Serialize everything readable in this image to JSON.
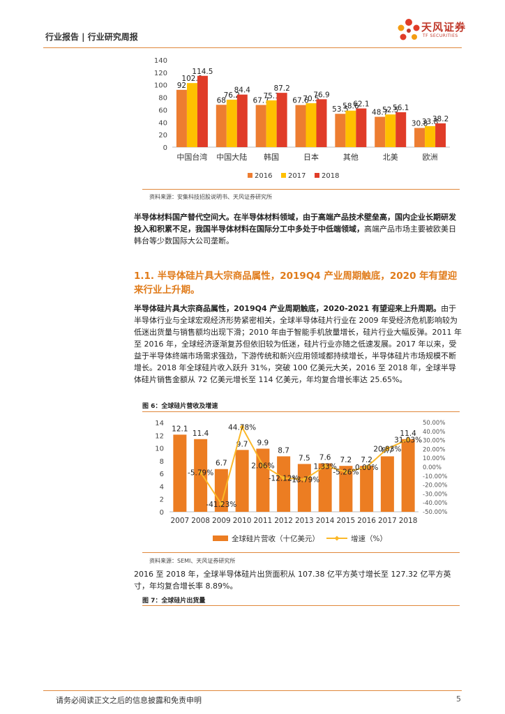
{
  "header": {
    "left_text": "行业报告 | 行业研究周报",
    "logo_text": "天风证券",
    "logo_sub": "TF SECURITIES"
  },
  "top_chart_source": "资料来源：安集科技招股说明书、天风证券研究所",
  "para1_bold": "半导体材料国产替代空间大。在半导体材料领域，由于高端产品技术壁垒高，国内企业长期研发投入和积累不足，我国半导体材料在国际分工中多处于中低端领域，",
  "para1_rest": "高端产品市场主要被欧美日韩台等少数国际大公司垄断。",
  "section_title": "1.1. 半导体硅片具大宗商品属性，2019Q4 产业周期触底，2020 年有望迎来行业上升期。",
  "para2_bold": "半导体硅片具大宗商品属性，2019Q4 产业周期触底，2020-2021 有望迎来上升周期。",
  "para2_rest": "由于半导体行业与全球宏观经济形势紧密相关，全球半导体硅片行业在 2009 年受经济危机影响较为低迷出货量与销售额均出现下滑；2010 年由于智能手机放量增长，硅片行业大幅反弹。2011 年至 2016 年，全球经济逐渐复苏但依旧较为低迷，硅片行业亦随之低速发展。2017 年以来，受益于半导体终端市场需求强劲，下游传统和新兴应用领域都持续增长，半导体硅片市场规模不断增长。2018 年全球硅片收入跃升 31%，突破 100 亿美元大关，2016 至 2018 年，全球半导体硅片销售金额从 72 亿美元增长至 114 亿美元，年均复合增长率达 25.65%。",
  "fig6_title": "图 6：全球硅片营收及增速",
  "fig6_source": "资料来源：SEMI、天风证券研究所",
  "para3": "2016 至 2018 年，全球半导体硅片出货面积从 107.38 亿平方英寸增长至 127.32 亿平方英寸，年均复合增长率 8.89%。",
  "fig7_title": "图 7：全球硅片出货量",
  "footer": {
    "disclaimer": "请务必阅读正文之后的信息披露和免责申明",
    "page": "5"
  },
  "colors": {
    "accent": "#e07b1a",
    "bar_orange": "#ec7d22",
    "line_yellow": "#fbb829",
    "c2016": "#ed7d31",
    "c2017": "#ffc000",
    "c2018": "#e03c28"
  },
  "chart_data": [
    {
      "type": "bar",
      "categories": [
        "中国台湾",
        "中国大陆",
        "韩国",
        "日本",
        "其他",
        "北美",
        "欧洲"
      ],
      "series": [
        {
          "name": "2016",
          "values": [
            92,
            68,
            67.7,
            67.6,
            53.5,
            48.7,
            30.8
          ]
        },
        {
          "name": "2017",
          "values": [
            102.9,
            76.2,
            75.1,
            70.5,
            58.6,
            52.5,
            33.8
          ]
        },
        {
          "name": "2018",
          "values": [
            114.5,
            84.4,
            87.2,
            76.9,
            62.1,
            56.1,
            38.2
          ]
        }
      ],
      "yticks": [
        "0",
        "20",
        "40",
        "60",
        "80",
        "100",
        "120",
        "140"
      ],
      "ylim": [
        0,
        140
      ],
      "legend_position": "bottom",
      "grid": false
    },
    {
      "type": "bar",
      "categories": [
        "2007",
        "2008",
        "2009",
        "2010",
        "2011",
        "2012",
        "2013",
        "2014",
        "2015",
        "2016",
        "2017",
        "2018"
      ],
      "series": [
        {
          "name": "全球硅片营收（十亿美元）",
          "values": [
            12.1,
            11.4,
            6.7,
            9.7,
            9.9,
            8.7,
            7.5,
            7.6,
            7.2,
            7.2,
            8.7,
            11.4
          ],
          "type": "bar",
          "axis": "left"
        },
        {
          "name": "增速（%）",
          "values": [
            null,
            -5.79,
            -41.23,
            44.78,
            2.06,
            -12.12,
            -13.79,
            1.33,
            -5.26,
            0.0,
            20.83,
            31.03
          ],
          "type": "line",
          "axis": "right"
        }
      ],
      "point_labels": [
        "",
        "-5.79%",
        "-41.23%",
        "44.78%",
        "2.06%",
        "-12.12%",
        "-13.79%",
        "1.33%",
        "-5.26%",
        "0.00%",
        "20.83%",
        "31.03%"
      ],
      "yticks_left": [
        "0",
        "2",
        "4",
        "6",
        "8",
        "10",
        "12",
        "14"
      ],
      "yticks_right": [
        "-50.00%",
        "-40.00%",
        "-30.00%",
        "-20.00%",
        "-10.00%",
        "0.00%",
        "10.00%",
        "20.00%",
        "30.00%",
        "40.00%",
        "50.00%"
      ],
      "ylim_left": [
        0,
        14
      ],
      "ylim_right": [
        -50,
        50
      ],
      "legend_position": "bottom",
      "grid": false
    }
  ]
}
